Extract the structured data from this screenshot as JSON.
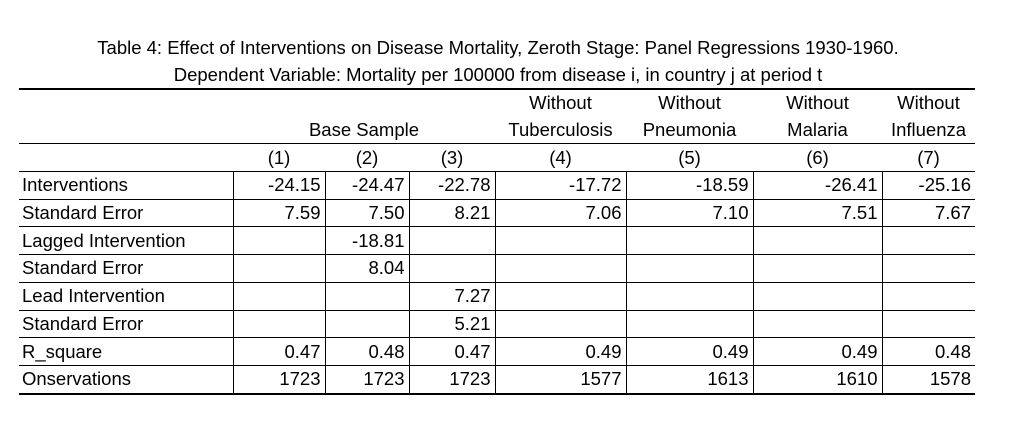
{
  "title": {
    "line1": "Table 4: Effect of Interventions on Disease Mortality, Zeroth Stage: Panel Regressions 1930-1960.",
    "line2": "Dependent Variable: Mortality per 100000 from disease i, in country j at period t"
  },
  "header": {
    "row1": [
      "Without",
      "Without",
      "Without",
      "Without"
    ],
    "group_base": "Base Sample",
    "row2": [
      "Tuberculosis",
      "Pneumonia",
      "Malaria",
      "Influenza"
    ],
    "cols": [
      "(1)",
      "(2)",
      "(3)",
      "(4)",
      "(5)",
      "(6)",
      "(7)"
    ]
  },
  "rows": [
    {
      "label": "Interventions",
      "values": [
        "-24.15",
        "-24.47",
        "-22.78",
        "-17.72",
        "-18.59",
        "-26.41",
        "-25.16"
      ]
    },
    {
      "label": "Standard Error",
      "values": [
        "7.59",
        "7.50",
        "8.21",
        "7.06",
        "7.10",
        "7.51",
        "7.67"
      ]
    },
    {
      "label": "Lagged Intervention",
      "values": [
        "",
        "-18.81",
        "",
        "",
        "",
        "",
        ""
      ]
    },
    {
      "label": "Standard Error",
      "values": [
        "",
        "8.04",
        "",
        "",
        "",
        "",
        ""
      ]
    },
    {
      "label": "Lead Intervention",
      "values": [
        "",
        "",
        "7.27",
        "",
        "",
        "",
        ""
      ]
    },
    {
      "label": "Standard Error",
      "values": [
        "",
        "",
        "5.21",
        "",
        "",
        "",
        ""
      ]
    },
    {
      "label": "R_square",
      "values": [
        "0.47",
        "0.48",
        "0.47",
        "0.49",
        "0.49",
        "0.49",
        "0.48"
      ]
    },
    {
      "label": "Onservations",
      "values": [
        "1723",
        "1723",
        "1723",
        "1577",
        "1613",
        "1610",
        "1578"
      ]
    }
  ]
}
